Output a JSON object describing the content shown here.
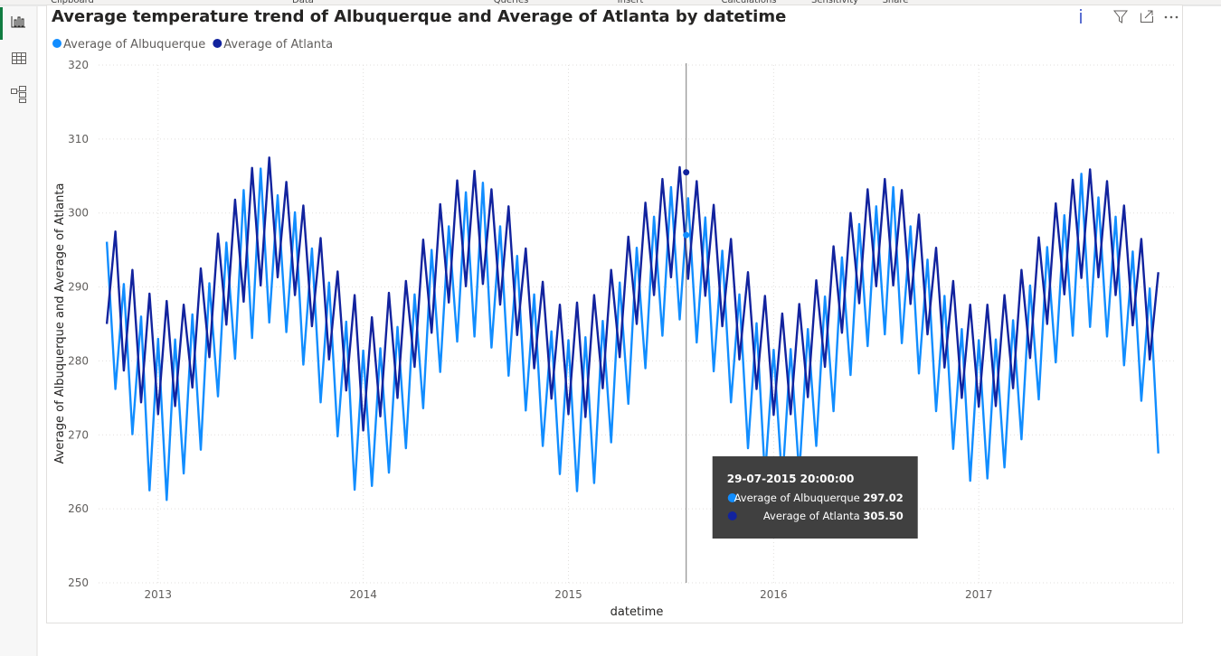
{
  "ribbon": {
    "groups": [
      "Clipboard",
      "Data",
      "Queries",
      "Insert",
      "Calculations",
      "Sensitivity",
      "Share"
    ]
  },
  "chart_data": {
    "type": "line",
    "title": "Average temperature trend of Albuquerque and Average of Atlanta by datetime",
    "x_label": "datetime",
    "y_label": "Average of Albuquerque and Average of Atlanta",
    "xlim": [
      2012.71,
      2017.96
    ],
    "xticks": [
      2013,
      2014,
      2015,
      2016,
      2017
    ],
    "ylim": [
      250,
      320
    ],
    "yticks": [
      250,
      260,
      270,
      280,
      290,
      300,
      310,
      320
    ],
    "grid": true,
    "legend": "top-left",
    "x": [
      2012.75,
      2012.792,
      2012.833,
      2012.875,
      2012.917,
      2012.958,
      2013,
      2013.042,
      2013.083,
      2013.125,
      2013.167,
      2013.208,
      2013.25,
      2013.292,
      2013.333,
      2013.375,
      2013.417,
      2013.458,
      2013.5,
      2013.542,
      2013.583,
      2013.625,
      2013.667,
      2013.708,
      2013.75,
      2013.792,
      2013.833,
      2013.875,
      2013.917,
      2013.958,
      2014,
      2014.042,
      2014.083,
      2014.125,
      2014.167,
      2014.208,
      2014.25,
      2014.292,
      2014.333,
      2014.375,
      2014.417,
      2014.458,
      2014.5,
      2014.542,
      2014.583,
      2014.625,
      2014.667,
      2014.708,
      2014.75,
      2014.792,
      2014.833,
      2014.875,
      2014.917,
      2014.958,
      2015,
      2015.042,
      2015.083,
      2015.125,
      2015.167,
      2015.208,
      2015.25,
      2015.292,
      2015.333,
      2015.375,
      2015.417,
      2015.458,
      2015.5,
      2015.542,
      2015.583,
      2015.625,
      2015.667,
      2015.708,
      2015.75,
      2015.792,
      2015.833,
      2015.875,
      2015.917,
      2015.958,
      2016,
      2016.042,
      2016.083,
      2016.125,
      2016.167,
      2016.208,
      2016.25,
      2016.292,
      2016.333,
      2016.375,
      2016.417,
      2016.458,
      2016.5,
      2016.542,
      2016.583,
      2016.625,
      2016.667,
      2016.708,
      2016.75,
      2016.792,
      2016.833,
      2016.875,
      2016.917,
      2016.958,
      2017,
      2017.042,
      2017.083,
      2017.125,
      2017.167,
      2017.208,
      2017.25,
      2017.292,
      2017.333,
      2017.375,
      2017.417,
      2017.458,
      2017.5,
      2017.542,
      2017.583,
      2017.625,
      2017.667,
      2017.708,
      2017.75,
      2017.792,
      2017.833,
      2017.875
    ],
    "series": [
      {
        "name": "Average of Albuquerque",
        "color": "#118DFF",
        "values": [
          296.1,
          276.2,
          290.4,
          270.1,
          286.0,
          262.5,
          283.0,
          261.2,
          282.9,
          264.8,
          286.3,
          268.0,
          290.5,
          275.2,
          296.0,
          280.3,
          303.1,
          283.1,
          306.0,
          285.2,
          302.4,
          283.9,
          300.1,
          279.5,
          295.2,
          274.4,
          290.6,
          269.8,
          285.3,
          262.6,
          281.4,
          263.1,
          281.7,
          264.9,
          284.6,
          268.2,
          289.0,
          273.6,
          295.0,
          278.5,
          298.2,
          282.6,
          302.8,
          283.3,
          304.1,
          281.8,
          298.2,
          278.0,
          294.2,
          273.3,
          289.0,
          268.5,
          284.0,
          264.7,
          282.8,
          262.4,
          283.2,
          263.5,
          285.4,
          269.0,
          290.6,
          274.2,
          295.3,
          279.0,
          299.5,
          283.4,
          303.5,
          285.6,
          302.0,
          282.5,
          299.4,
          278.6,
          294.9,
          274.4,
          289.0,
          268.2,
          285.1,
          264.3,
          281.5,
          263.4,
          281.6,
          264.6,
          284.3,
          268.5,
          288.7,
          273.2,
          294.0,
          278.1,
          298.5,
          282.0,
          300.9,
          283.6,
          303.5,
          282.4,
          298.2,
          278.3,
          293.7,
          273.2,
          288.8,
          268.1,
          284.3,
          263.8,
          282.8,
          264.1,
          282.9,
          265.6,
          285.5,
          269.4,
          290.2,
          274.8,
          295.4,
          279.8,
          299.7,
          283.4,
          305.3,
          284.6,
          302.1,
          283.3,
          299.5,
          279.4,
          294.8,
          274.6,
          289.8,
          267.5
        ]
      },
      {
        "name": "Average of Atlanta",
        "color": "#12239E",
        "values": [
          285.0,
          297.5,
          278.7,
          292.3,
          274.4,
          289.1,
          272.8,
          288.1,
          273.9,
          287.6,
          276.4,
          292.5,
          280.5,
          297.2,
          284.9,
          301.8,
          288.0,
          306.1,
          290.2,
          307.5,
          291.3,
          304.2,
          288.9,
          301.0,
          284.7,
          296.6,
          280.2,
          292.1,
          276.0,
          288.9,
          270.6,
          285.9,
          272.5,
          289.2,
          275.0,
          290.8,
          279.2,
          296.4,
          283.8,
          301.2,
          287.9,
          304.4,
          290.1,
          305.7,
          290.4,
          303.2,
          287.6,
          300.9,
          283.5,
          295.2,
          279.0,
          290.7,
          274.9,
          287.6,
          272.8,
          287.9,
          272.4,
          288.9,
          276.3,
          292.3,
          280.5,
          296.8,
          285.0,
          301.4,
          288.9,
          304.6,
          291.3,
          306.2,
          291.1,
          304.3,
          288.8,
          301.1,
          284.7,
          296.5,
          280.2,
          292.0,
          276.2,
          288.8,
          272.7,
          286.4,
          272.8,
          287.7,
          275.1,
          290.9,
          279.2,
          295.5,
          283.8,
          300.0,
          287.8,
          303.2,
          290.1,
          304.6,
          290.2,
          303.1,
          287.7,
          299.8,
          283.6,
          295.3,
          279.1,
          290.8,
          275.0,
          287.6,
          273.8,
          287.6,
          273.9,
          288.9,
          276.3,
          292.3,
          280.4,
          296.7,
          285.0,
          301.3,
          289.0,
          304.5,
          291.2,
          305.9,
          291.3,
          304.3,
          288.9,
          301.0,
          284.8,
          296.5,
          280.2,
          292.0
        ]
      }
    ],
    "hover": {
      "x": 2015.574,
      "datetime": "29-07-2015 20:00:00",
      "values": [
        297.02,
        305.5
      ],
      "value_labels": [
        "297.02",
        "305.50"
      ]
    }
  }
}
